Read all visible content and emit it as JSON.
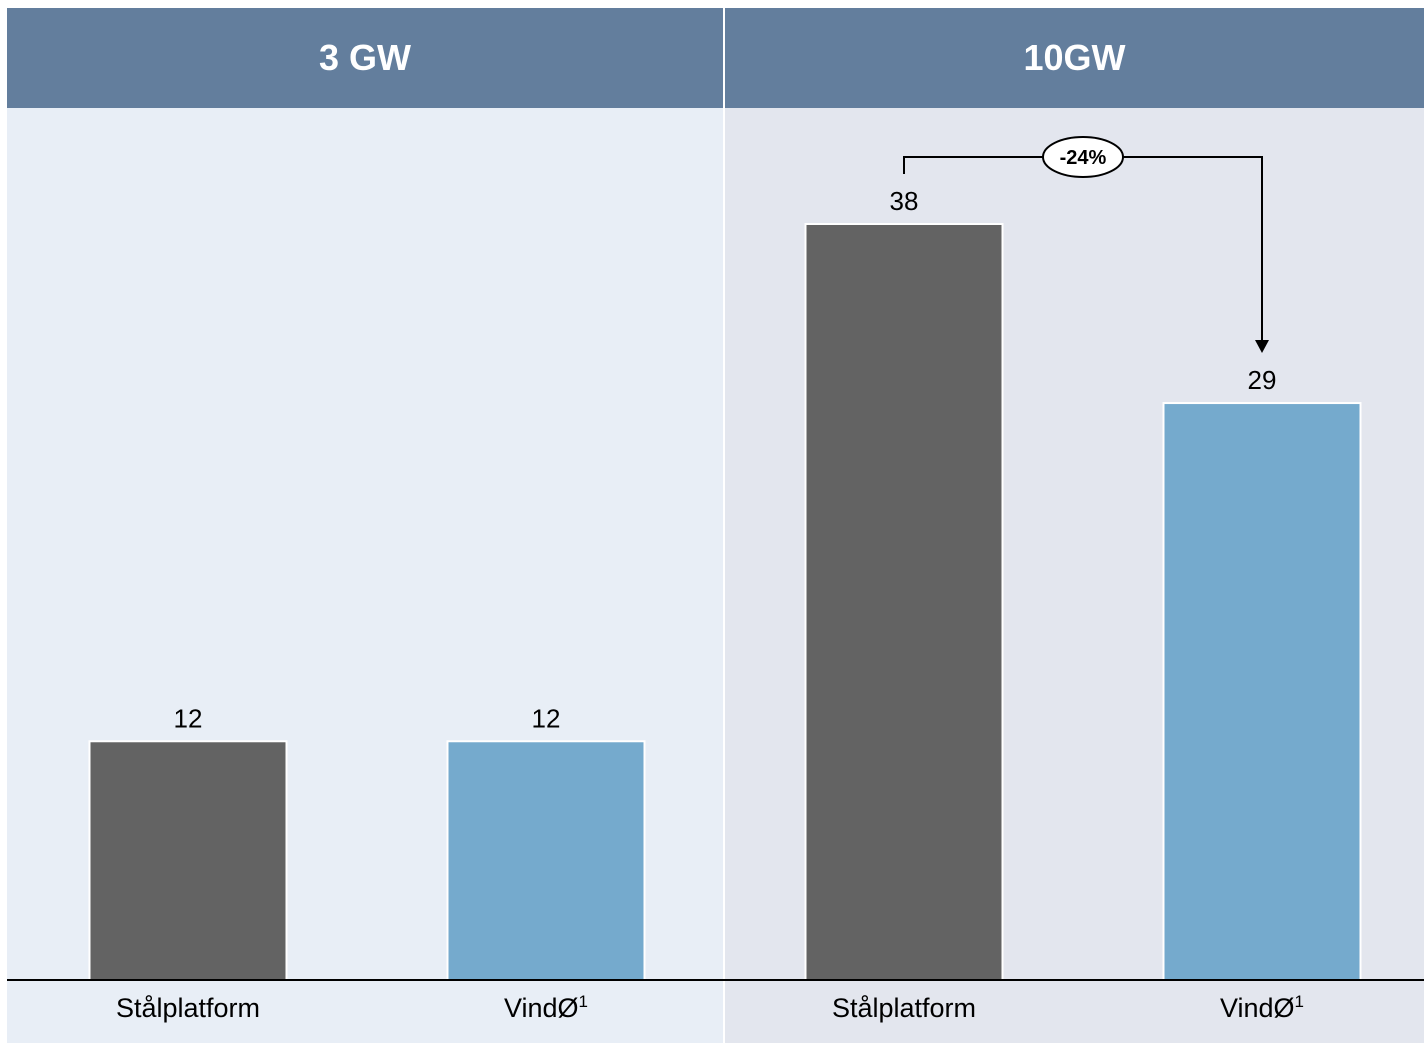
{
  "chart_data": {
    "type": "bar",
    "colors": {
      "Stålplatform": "#636363",
      "VindØ": "#75aacd",
      "header": "#637e9d"
    },
    "panels": [
      {
        "title": "3 GW",
        "categories": [
          {
            "name": "Stålplatform",
            "sup": ""
          },
          {
            "name": "VindØ",
            "sup": "1"
          }
        ],
        "values": [
          12,
          12
        ]
      },
      {
        "title": "10GW",
        "categories": [
          {
            "name": "Stålplatform",
            "sup": ""
          },
          {
            "name": "VindØ",
            "sup": "1"
          }
        ],
        "values": [
          38,
          29
        ],
        "annotation": {
          "label": "-24%",
          "from": 0,
          "to": 1
        }
      }
    ],
    "ylim": [
      0,
      38
    ]
  }
}
